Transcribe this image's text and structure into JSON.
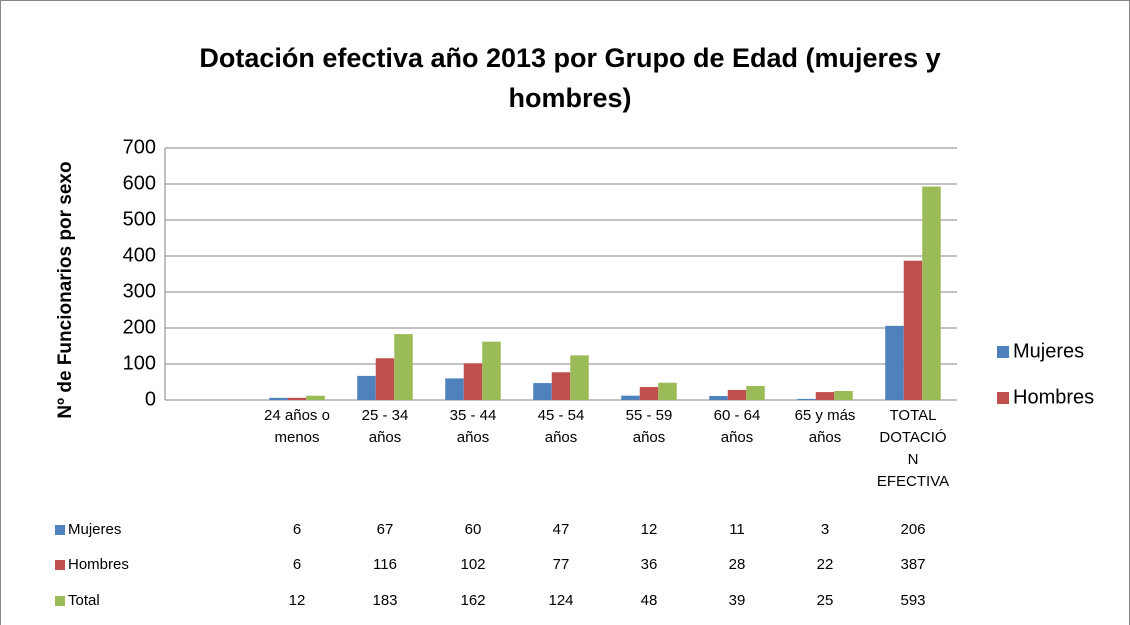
{
  "chart_data": {
    "type": "bar",
    "title": "Dotación efectiva año 2013 por Grupo de Edad (mujeres y hombres)",
    "y_label": "Nº de Funcionarios por sexo",
    "categories": [
      null,
      "24 años o menos",
      "25 - 34 años",
      "35 - 44 años",
      "45  - 54 años",
      "55 - 59 años",
      "60 - 64 años",
      "65 y más años",
      "TOTAL DOTACIÓN EFECTIVA"
    ],
    "series": [
      {
        "name": "Mujeres",
        "color": "#4f81bd",
        "values": [
          null,
          6,
          67,
          60,
          47,
          12,
          11,
          3,
          206
        ]
      },
      {
        "name": "Hombres",
        "color": "#c0504d",
        "values": [
          null,
          6,
          116,
          102,
          77,
          36,
          28,
          22,
          387
        ]
      },
      {
        "name": "Total",
        "color": "#9bbb59",
        "values": [
          null,
          12,
          183,
          162,
          124,
          48,
          39,
          25,
          593
        ],
        "show_in_legend": false
      }
    ],
    "ylim": [
      0,
      700
    ],
    "yticks": [
      0,
      100,
      200,
      300,
      400,
      500,
      600,
      700
    ],
    "grid": true,
    "legend": "right",
    "data_table": true
  }
}
